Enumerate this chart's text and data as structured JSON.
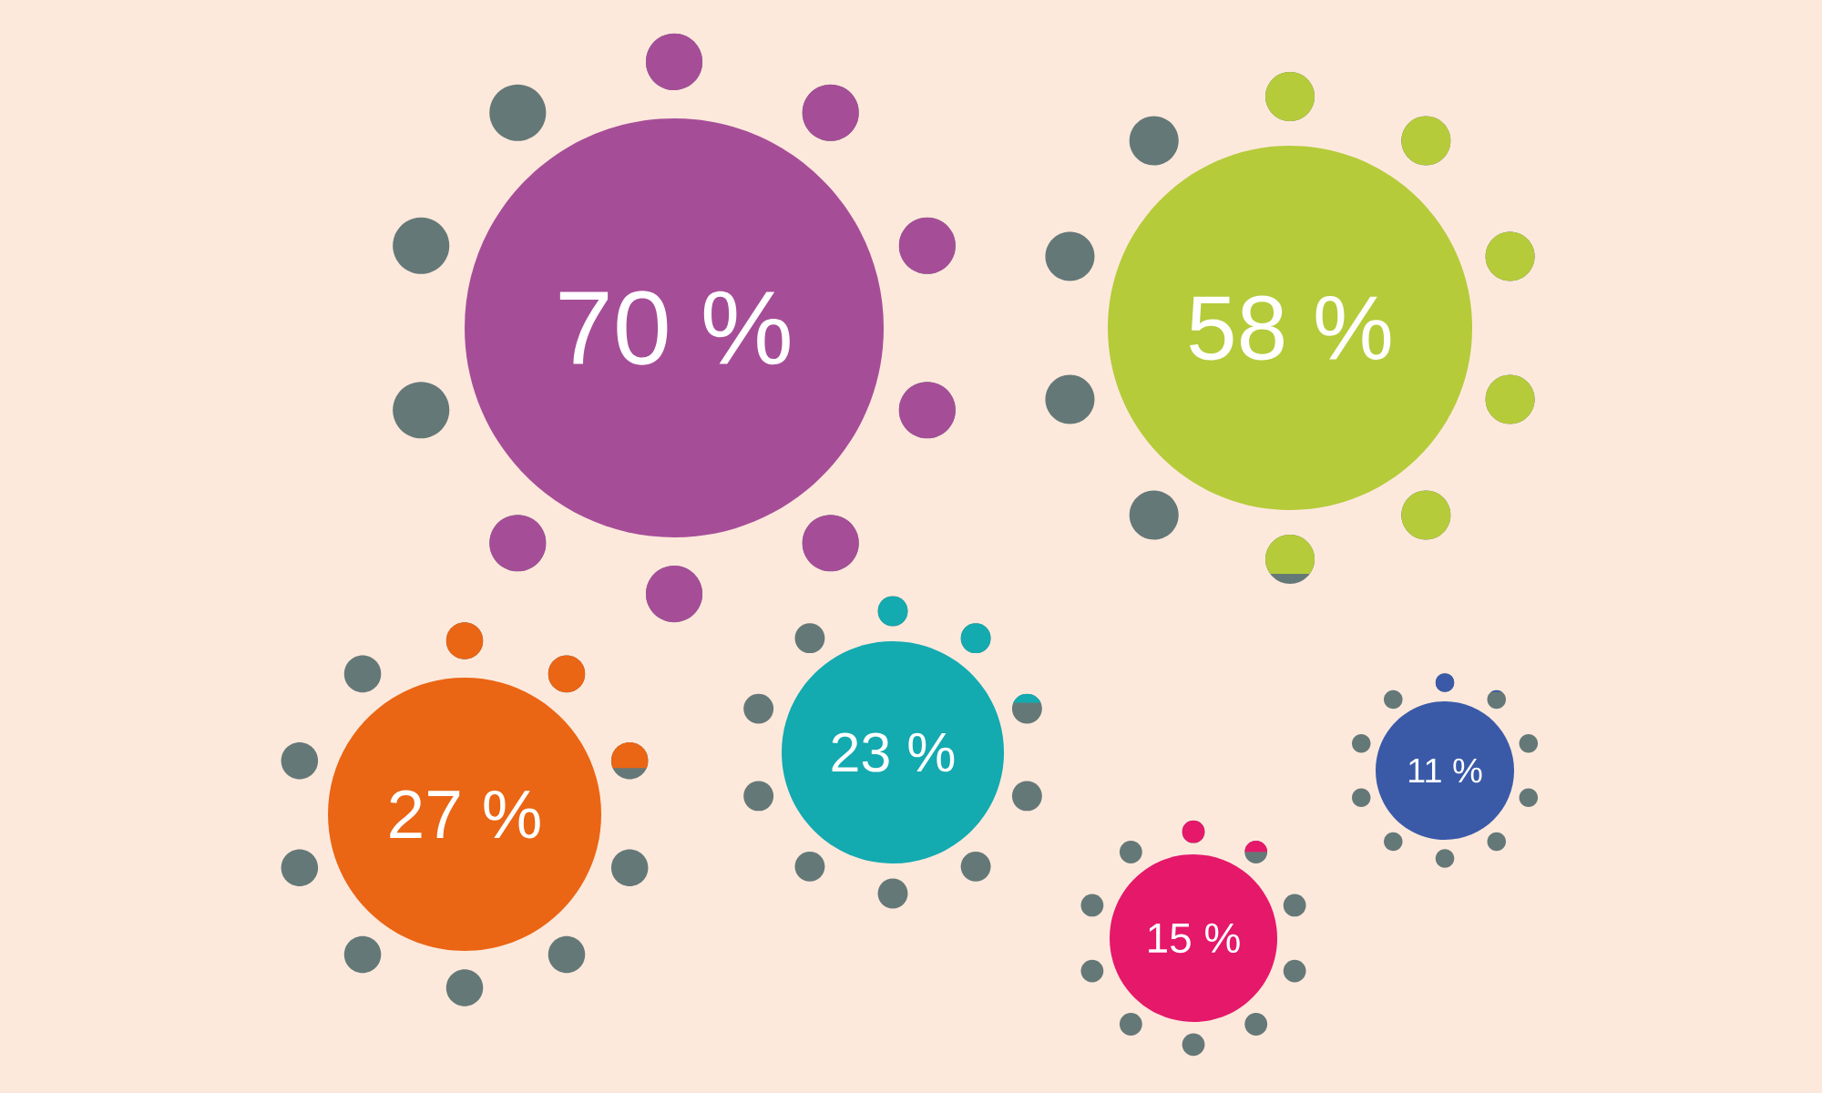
{
  "chart_data": {
    "type": "other",
    "categories": [
      null,
      null,
      null,
      null,
      null,
      null
    ],
    "values": [
      70,
      58,
      27,
      23,
      15,
      11
    ],
    "value_labels": [
      "70 %",
      "58 %",
      "27 %",
      "23 %",
      "15 %",
      "11 %"
    ],
    "colors": [
      "#a64d98",
      "#b5cb3a",
      "#ea6514",
      "#13aab0",
      "#e5186a",
      "#3a5aa8"
    ]
  }
}
